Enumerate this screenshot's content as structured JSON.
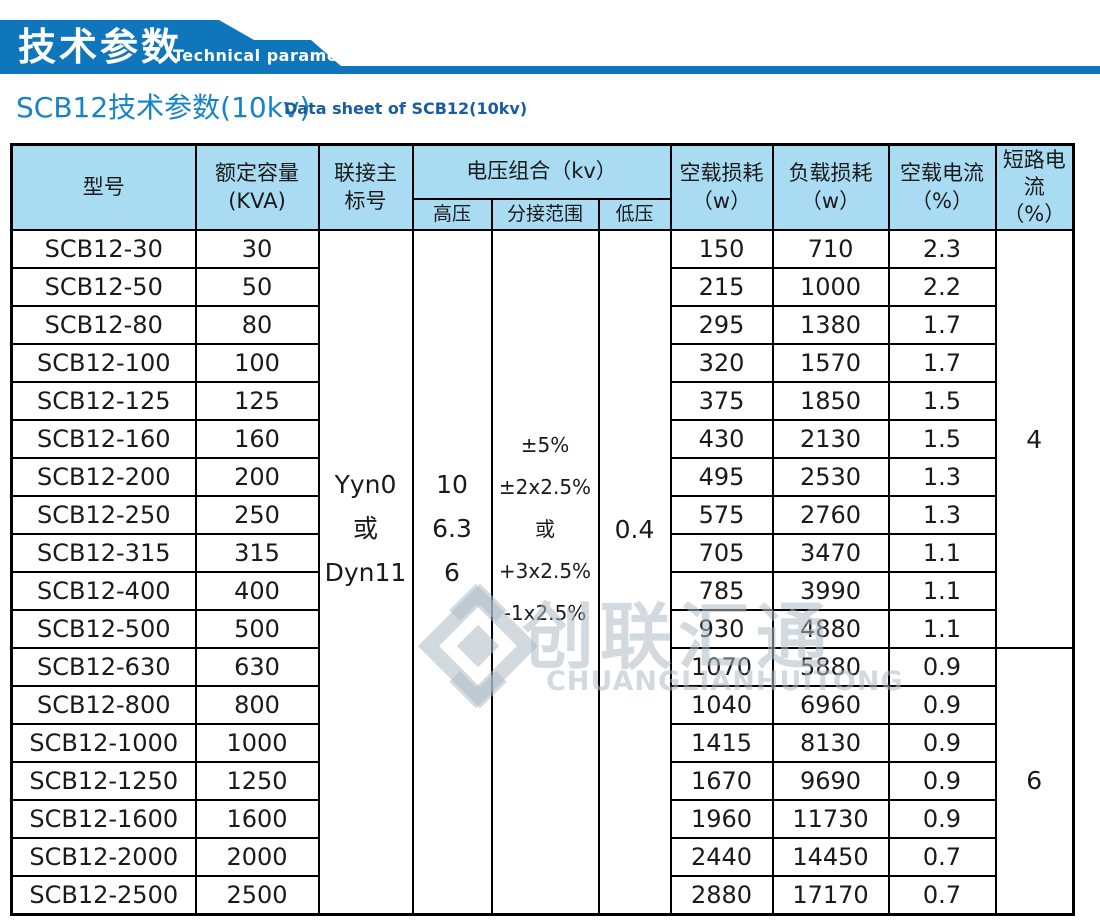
{
  "colors": {
    "banner_blue": "#1076bc",
    "subtitle_blue": "#1583c8",
    "subtitle_dark_blue": "#1a5ca3",
    "header_bg": "#a9dcf3",
    "border": "#000000",
    "watermark_gray": "#aebcc4"
  },
  "banner": {
    "title_cn": "技术参数",
    "title_en": "Technical parameter"
  },
  "subtitle": {
    "cn": "SCB12技术参数(10kv)",
    "en": "Data sheet of SCB12(10kv)"
  },
  "table": {
    "headers": {
      "model": "型号",
      "capacity": "额定容量\n(KVA)",
      "connection": "联接主\n标号",
      "voltage_group": "电压组合（kv）",
      "high_voltage": "高压",
      "tap_range": "分接范围",
      "low_voltage": "低压",
      "noload_loss": "空载损耗\n（w）",
      "load_loss": "负载损耗\n（w）",
      "noload_current": "空载电流\n（%）",
      "short_circuit_current": "短路电流\n（%）"
    },
    "merged": {
      "connection": "Yyn0\n或\nDyn11",
      "high_voltage": "10\n6.3\n6",
      "tap_range": "±5%\n±2x2.5%\n或+3x2.5%\n-1x2.5%",
      "low_voltage": "0.4"
    },
    "short_circuit_groups": [
      {
        "value": "4",
        "row_span": 11
      },
      {
        "value": "6",
        "row_span": 7
      }
    ],
    "rows": [
      [
        "SCB12-30",
        "30",
        "150",
        "710",
        "2.3"
      ],
      [
        "SCB12-50",
        "50",
        "215",
        "1000",
        "2.2"
      ],
      [
        "SCB12-80",
        "80",
        "295",
        "1380",
        "1.7"
      ],
      [
        "SCB12-100",
        "100",
        "320",
        "1570",
        "1.7"
      ],
      [
        "SCB12-125",
        "125",
        "375",
        "1850",
        "1.5"
      ],
      [
        "SCB12-160",
        "160",
        "430",
        "2130",
        "1.5"
      ],
      [
        "SCB12-200",
        "200",
        "495",
        "2530",
        "1.3"
      ],
      [
        "SCB12-250",
        "250",
        "575",
        "2760",
        "1.3"
      ],
      [
        "SCB12-315",
        "315",
        "705",
        "3470",
        "1.1"
      ],
      [
        "SCB12-400",
        "400",
        "785",
        "3990",
        "1.1"
      ],
      [
        "SCB12-500",
        "500",
        "930",
        "4880",
        "1.1"
      ],
      [
        "SCB12-630",
        "630",
        "1070",
        "5880",
        "0.9"
      ],
      [
        "SCB12-800",
        "800",
        "1040",
        "6960",
        "0.9"
      ],
      [
        "SCB12-1000",
        "1000",
        "1415",
        "8130",
        "0.9"
      ],
      [
        "SCB12-1250",
        "1250",
        "1670",
        "9690",
        "0.9"
      ],
      [
        "SCB12-1600",
        "1600",
        "1960",
        "11730",
        "0.9"
      ],
      [
        "SCB12-2000",
        "2000",
        "2440",
        "14450",
        "0.7"
      ],
      [
        "SCB12-2500",
        "2500",
        "2880",
        "17170",
        "0.7"
      ]
    ]
  },
  "watermark": {
    "logo": "diamond-logo",
    "cn": "创联汇通",
    "en": "CHUANGLIANHUITONG"
  }
}
